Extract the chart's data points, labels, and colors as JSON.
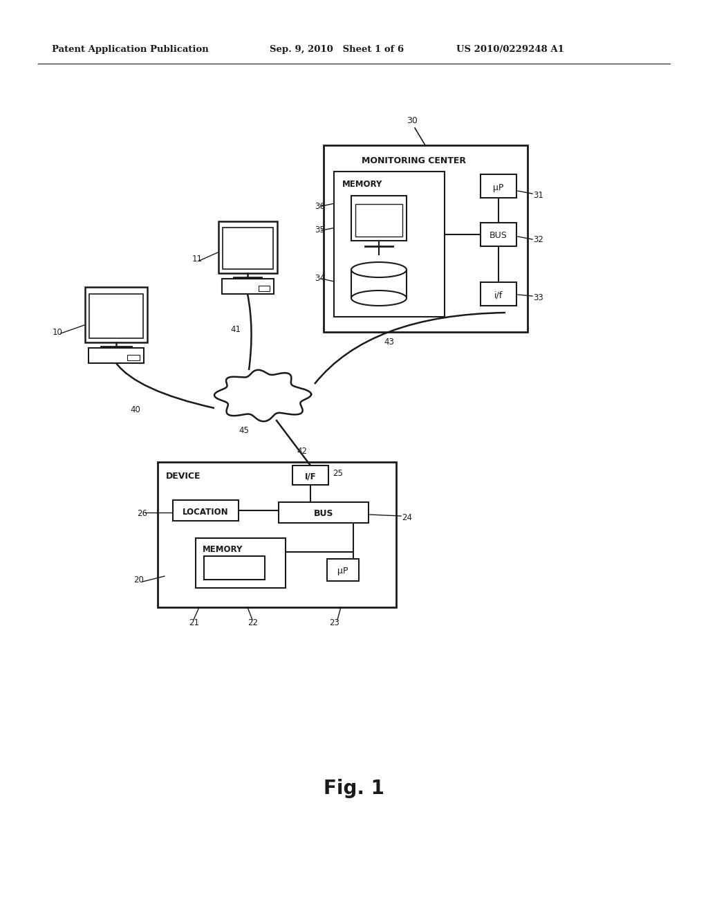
{
  "background_color": "#ffffff",
  "header_left": "Patent Application Publication",
  "header_mid": "Sep. 9, 2010   Sheet 1 of 6",
  "header_right": "US 2010/0229248 A1",
  "fig_label": "Fig. 1",
  "line_color": "#1a1a1a",
  "text_color": "#1a1a1a"
}
